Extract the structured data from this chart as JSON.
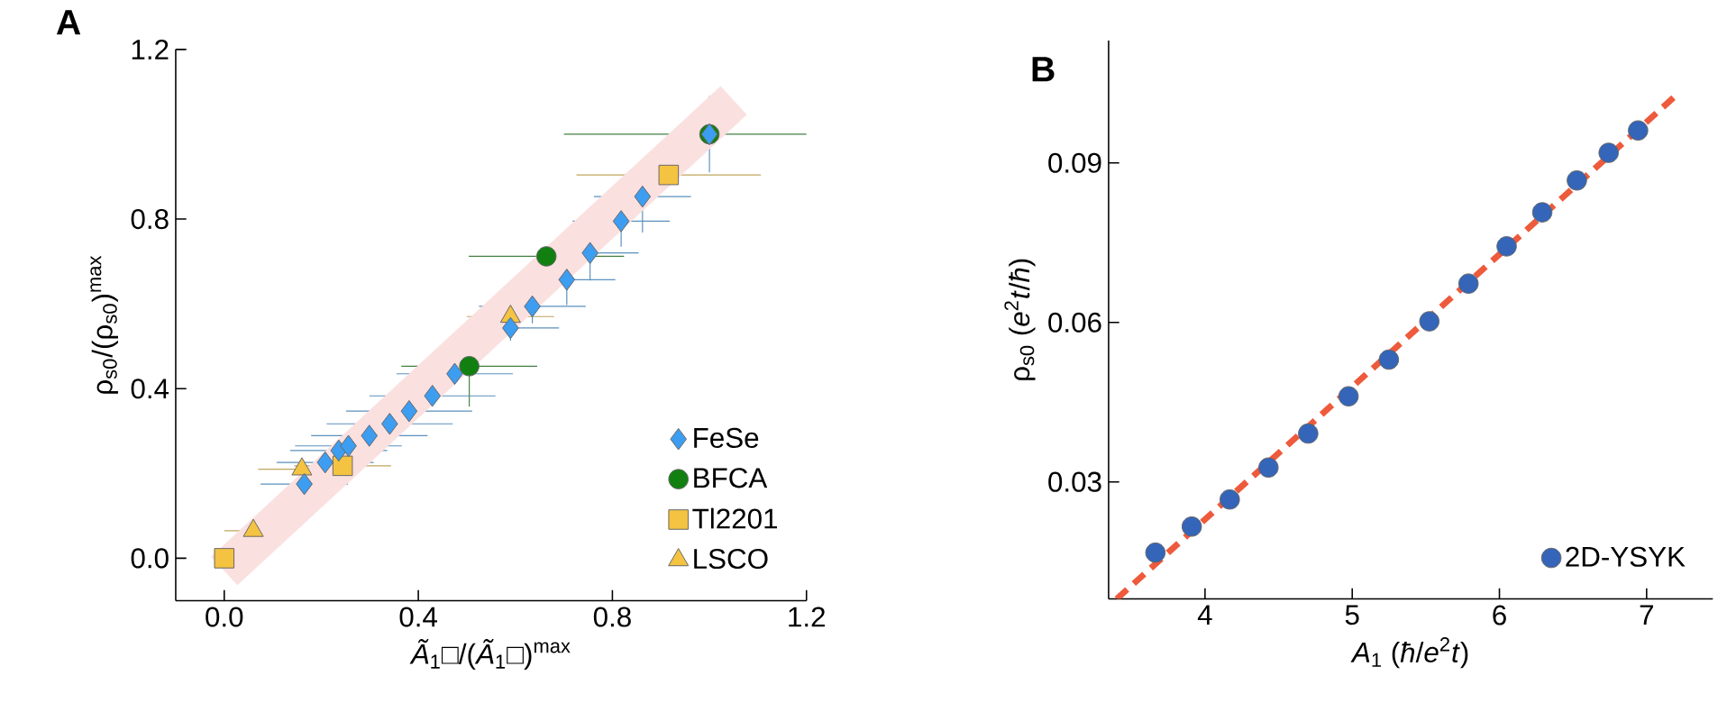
{
  "chart_data": [
    {
      "type": "scatter",
      "title": "A",
      "xlabel": "*Ã*$_{1}$□/(*Ã*$_{1}$□)$^{max}$",
      "ylabel": "ρ$_{s0}$/(ρ$_{s0}$)$^{max}$",
      "xlim": [
        -0.1,
        1.2
      ],
      "ylim": [
        -0.1,
        1.2
      ],
      "xticks": [
        {
          "value": 0,
          "label": "0.0"
        },
        0.4,
        0.8,
        1.2
      ],
      "yticks": [
        {
          "value": 0,
          "label": "0.0"
        },
        0.4,
        0.8,
        1.2
      ],
      "legend": "bottom right",
      "grid": false,
      "series": [
        {
          "type": "line",
          "color": "#fbe0e0",
          "line_style": "solid",
          "x": [
            0,
            1.05
          ],
          "values": [
            -0.03,
            1.08
          ]
        },
        {
          "name": "FeSe",
          "color": "#3d9df0",
          "marker": "diamond",
          "x": [
            0.165,
            0.208,
            0.236,
            0.256,
            0.299,
            0.341,
            0.381,
            0.429,
            0.475,
            0.59,
            0.635,
            0.706,
            0.754,
            0.818,
            0.862,
            1.0
          ],
          "values": [
            0.175,
            0.226,
            0.254,
            0.265,
            0.289,
            0.317,
            0.347,
            0.383,
            0.435,
            0.543,
            0.594,
            0.657,
            0.72,
            0.795,
            0.853,
            1.0
          ],
          "xerrors": [
            0.09,
            0.1,
            0.1,
            0.11,
            0.12,
            0.13,
            0.13,
            0.13,
            0.12,
            0.1,
            0.11,
            0.1,
            0.1,
            0.1,
            0.1,
            null
          ],
          "errors": [
            null,
            null,
            null,
            null,
            null,
            null,
            null,
            null,
            null,
            0.03,
            0.04,
            0.06,
            0.065,
            0.06,
            0.085,
            0.09
          ]
        },
        {
          "name": "BFCA",
          "color": "#118011",
          "marker": "circle",
          "x": [
            0.505,
            0.664,
            1.0
          ],
          "values": [
            0.453,
            0.712,
            1.0
          ],
          "xerrors": [
            0.14,
            0.16,
            0.3
          ],
          "errors": [
            0.095,
            null,
            null
          ]
        },
        {
          "name": "Tl2201",
          "color": "#f5c342",
          "marker": "square",
          "x": [
            0.0,
            0.244,
            0.916
          ],
          "values": [
            0.0,
            0.218,
            0.904
          ],
          "xerrors": [
            null,
            0.1,
            0.19
          ]
        },
        {
          "name": "LSCO",
          "color": "#f5c342",
          "marker": "triangle",
          "x": [
            0.06,
            0.16,
            0.59
          ],
          "values": [
            0.065,
            0.21,
            0.57
          ],
          "xerrors": [
            0.06,
            0.09,
            0.09
          ]
        }
      ]
    },
    {
      "type": "scatter",
      "title": "B",
      "xlabel": "*A*$_{1}$ (*ħ*/*e*$^{2}$*t*)",
      "ylabel": "ρ$_{s0}$ (*e*$^{2}$*t*/*ħ*)",
      "xlim": [
        3.345,
        7.45
      ],
      "ylim": [
        0.008,
        0.113
      ],
      "xticks": [
        4,
        5,
        6,
        7
      ],
      "yticks": [
        0.03,
        0.06,
        0.09
      ],
      "legend": "bottom right",
      "grid": false,
      "series": [
        {
          "type": "line",
          "color": "#ee5a3c",
          "line_style": "dashed",
          "x": [
            3.4,
            7.2
          ],
          "values": [
            0.008,
            0.1027
          ]
        },
        {
          "name": "2D-YSYK",
          "color": "#3465b8",
          "marker": "circle",
          "x": [
            3.663,
            3.91,
            4.168,
            4.431,
            4.701,
            4.975,
            5.249,
            5.524,
            5.79,
            6.049,
            6.291,
            6.526,
            6.742,
            6.942
          ],
          "values": [
            0.0167,
            0.0216,
            0.0267,
            0.0327,
            0.0391,
            0.0461,
            0.053,
            0.0602,
            0.0673,
            0.0743,
            0.0807,
            0.0867,
            0.0919,
            0.0961
          ]
        }
      ]
    }
  ]
}
